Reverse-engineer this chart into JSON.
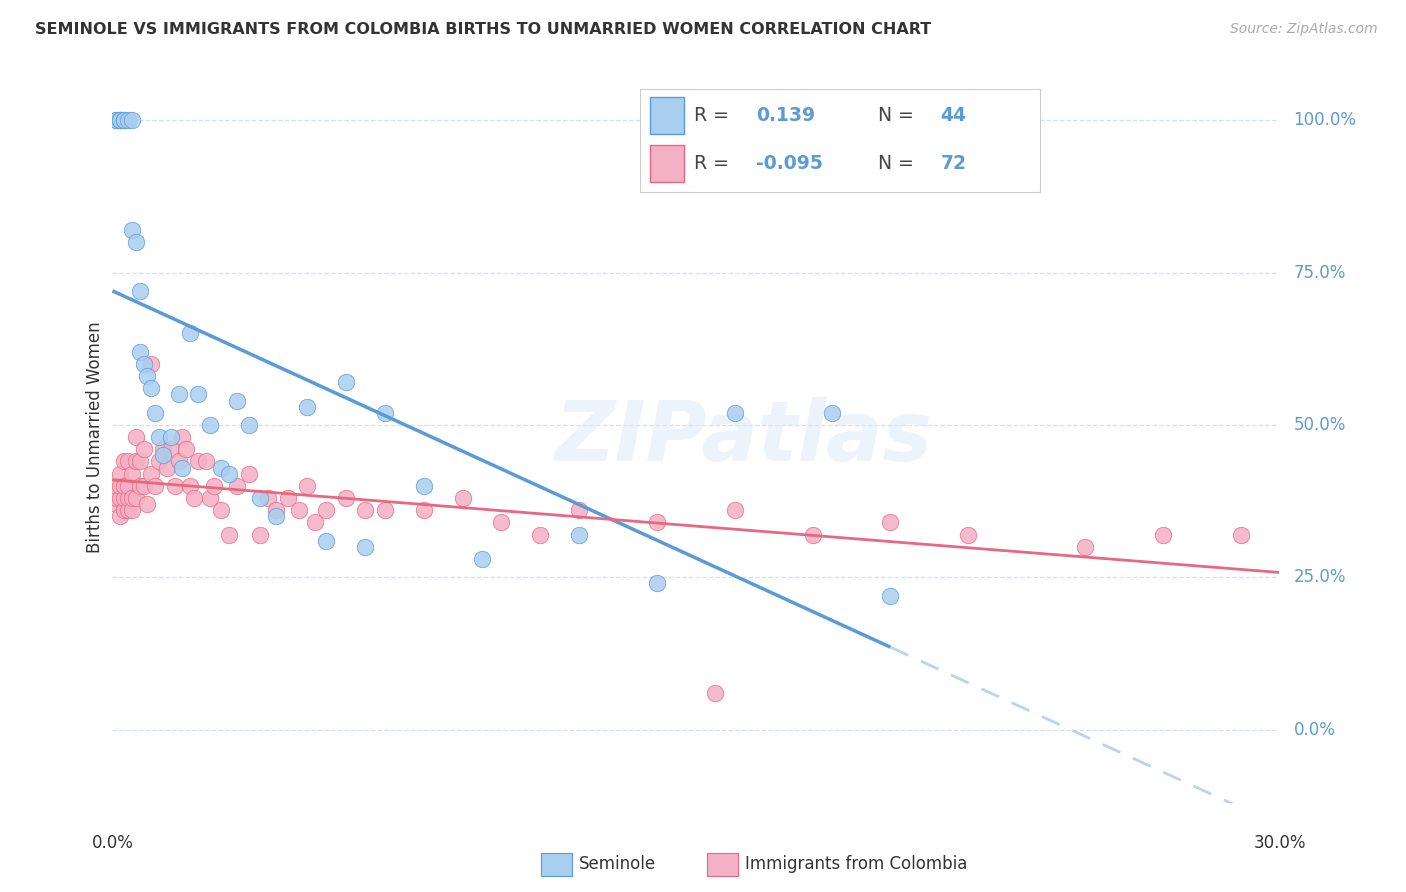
{
  "title": "SEMINOLE VS IMMIGRANTS FROM COLOMBIA BIRTHS TO UNMARRIED WOMEN CORRELATION CHART",
  "source": "Source: ZipAtlas.com",
  "ylabel": "Births to Unmarried Women",
  "ytick_labels": [
    "0.0%",
    "25.0%",
    "50.0%",
    "75.0%",
    "100.0%"
  ],
  "ytick_vals": [
    0.0,
    0.25,
    0.5,
    0.75,
    1.0
  ],
  "xlim": [
    0.0,
    0.3
  ],
  "ylim": [
    -0.12,
    1.08
  ],
  "color_blue": "#A8CEF0",
  "color_pink": "#F4B0C5",
  "color_blue_dark": "#5B9BD5",
  "color_pink_dark": "#E86880",
  "color_blue_dashed": "#B8D4F0",
  "grid_color": "#D5DFF0",
  "title_color": "#333333",
  "source_color": "#AAAAAA",
  "axis_label_color": "#5B9BD5",
  "seminole_x": [
    0.001,
    0.001,
    0.002,
    0.002,
    0.002,
    0.003,
    0.003,
    0.003,
    0.004,
    0.005,
    0.005,
    0.006,
    0.007,
    0.007,
    0.008,
    0.009,
    0.01,
    0.011,
    0.012,
    0.013,
    0.015,
    0.017,
    0.018,
    0.02,
    0.022,
    0.025,
    0.028,
    0.03,
    0.032,
    0.035,
    0.038,
    0.042,
    0.05,
    0.055,
    0.06,
    0.065,
    0.07,
    0.08,
    0.095,
    0.12,
    0.14,
    0.16,
    0.185,
    0.2
  ],
  "seminole_y": [
    1.0,
    1.0,
    1.0,
    1.0,
    1.0,
    1.0,
    1.0,
    1.0,
    1.0,
    1.0,
    0.82,
    0.8,
    0.62,
    0.72,
    0.6,
    0.58,
    0.56,
    0.52,
    0.48,
    0.45,
    0.48,
    0.55,
    0.43,
    0.65,
    0.55,
    0.5,
    0.43,
    0.42,
    0.54,
    0.5,
    0.38,
    0.35,
    0.53,
    0.31,
    0.57,
    0.3,
    0.52,
    0.4,
    0.28,
    0.32,
    0.24,
    0.52,
    0.52,
    0.22
  ],
  "colombia_x": [
    0.001,
    0.001,
    0.001,
    0.002,
    0.002,
    0.002,
    0.002,
    0.003,
    0.003,
    0.003,
    0.003,
    0.004,
    0.004,
    0.004,
    0.004,
    0.005,
    0.005,
    0.005,
    0.006,
    0.006,
    0.006,
    0.007,
    0.007,
    0.008,
    0.008,
    0.009,
    0.01,
    0.01,
    0.011,
    0.012,
    0.013,
    0.014,
    0.015,
    0.016,
    0.017,
    0.018,
    0.019,
    0.02,
    0.021,
    0.022,
    0.024,
    0.025,
    0.026,
    0.028,
    0.03,
    0.032,
    0.035,
    0.038,
    0.04,
    0.042,
    0.045,
    0.048,
    0.05,
    0.052,
    0.055,
    0.06,
    0.065,
    0.07,
    0.08,
    0.09,
    0.1,
    0.11,
    0.12,
    0.14,
    0.155,
    0.16,
    0.18,
    0.2,
    0.22,
    0.25,
    0.27,
    0.29
  ],
  "colombia_y": [
    0.37,
    0.38,
    0.4,
    0.35,
    0.38,
    0.4,
    0.42,
    0.36,
    0.38,
    0.4,
    0.44,
    0.36,
    0.38,
    0.4,
    0.44,
    0.36,
    0.38,
    0.42,
    0.38,
    0.44,
    0.48,
    0.4,
    0.44,
    0.4,
    0.46,
    0.37,
    0.42,
    0.6,
    0.4,
    0.44,
    0.46,
    0.43,
    0.46,
    0.4,
    0.44,
    0.48,
    0.46,
    0.4,
    0.38,
    0.44,
    0.44,
    0.38,
    0.4,
    0.36,
    0.32,
    0.4,
    0.42,
    0.32,
    0.38,
    0.36,
    0.38,
    0.36,
    0.4,
    0.34,
    0.36,
    0.38,
    0.36,
    0.36,
    0.36,
    0.38,
    0.34,
    0.32,
    0.36,
    0.34,
    0.06,
    0.36,
    0.32,
    0.34,
    0.32,
    0.3,
    0.32,
    0.32
  ],
  "legend_label_blue": "Seminole",
  "legend_label_pink": "Immigrants from Colombia"
}
